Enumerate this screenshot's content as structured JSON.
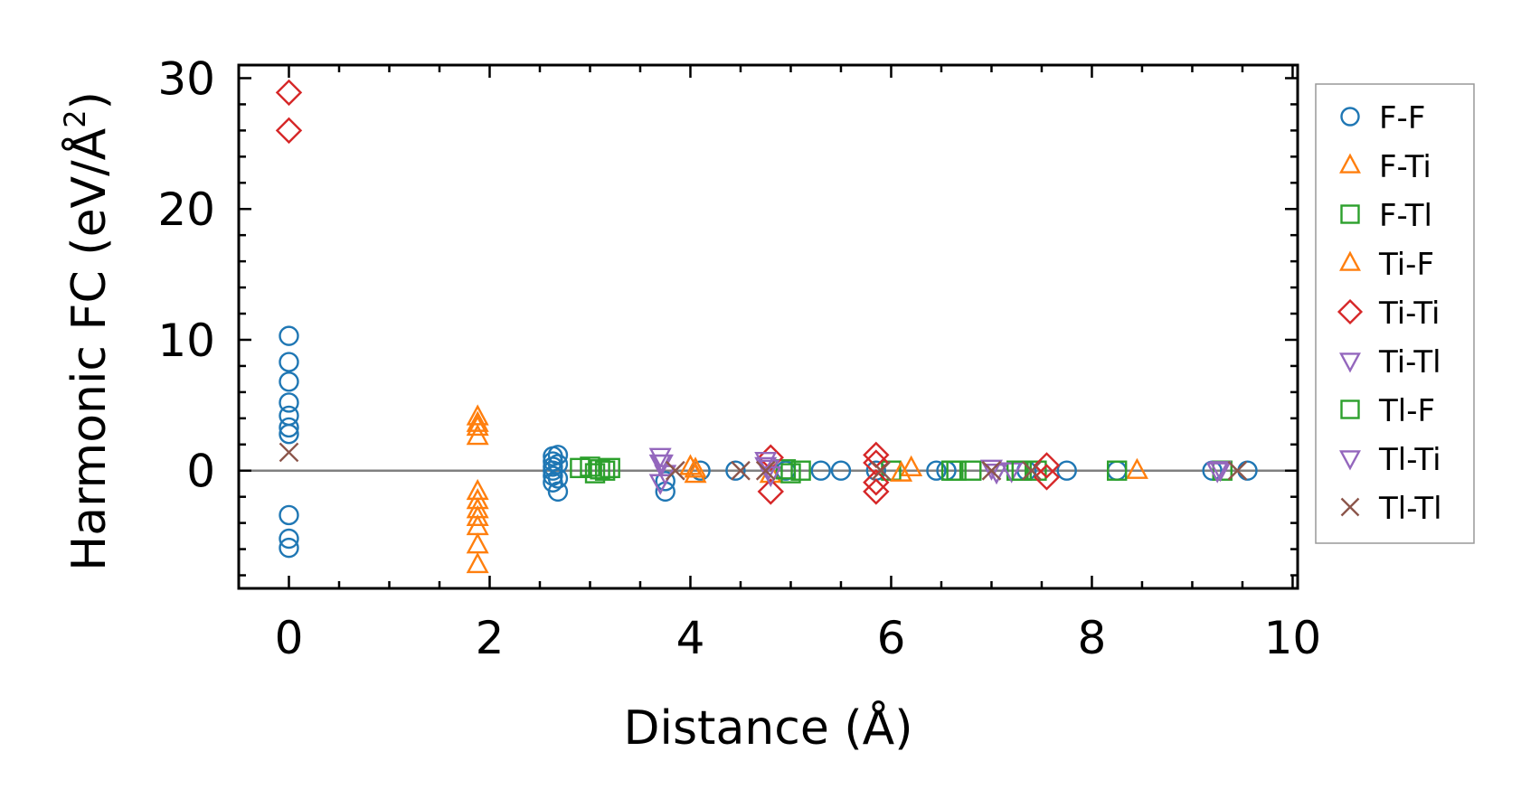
{
  "chart_data": {
    "type": "scatter",
    "title": "",
    "xlabel": "Distance (Å)",
    "ylabel_main": "Harmonic FC (eV/Å",
    "ylabel_sup": "2",
    "ylabel_close": ")",
    "xlim": [
      -0.5,
      10.05
    ],
    "ylim": [
      -9,
      31
    ],
    "xticks": [
      0,
      2,
      4,
      6,
      8,
      10
    ],
    "yticks": [
      0,
      10,
      20,
      30
    ],
    "xtick_labels": [
      "0",
      "2",
      "4",
      "6",
      "8",
      "10"
    ],
    "ytick_labels": [
      "0",
      "10",
      "20",
      "30"
    ],
    "xminor_step": 0.5,
    "yminor_step": 2,
    "grid": false,
    "legend_position": "outside-right",
    "zero_line": true,
    "series": [
      {
        "name": "F-F",
        "marker": "circle",
        "color": "#1f77b4",
        "points": [
          [
            0,
            10.3
          ],
          [
            0,
            8.3
          ],
          [
            0,
            6.8
          ],
          [
            0,
            5.2
          ],
          [
            0,
            4.2
          ],
          [
            0,
            3.3
          ],
          [
            0,
            2.8
          ],
          [
            0,
            -3.4
          ],
          [
            0,
            -5.2
          ],
          [
            0,
            -5.9
          ],
          [
            2.63,
            1.1
          ],
          [
            2.63,
            0.7
          ],
          [
            2.63,
            0.3
          ],
          [
            2.63,
            0
          ],
          [
            2.63,
            -0.4
          ],
          [
            2.63,
            -0.9
          ],
          [
            2.68,
            -1.6
          ],
          [
            2.68,
            1.2
          ],
          [
            2.68,
            0.5
          ],
          [
            2.68,
            -0.6
          ],
          [
            3.75,
            -1.6
          ],
          [
            3.75,
            -0.8
          ],
          [
            4.1,
            0
          ],
          [
            4.45,
            0
          ],
          [
            4.95,
            0
          ],
          [
            5.3,
            0
          ],
          [
            5.5,
            0
          ],
          [
            5.85,
            0
          ],
          [
            6.45,
            0
          ],
          [
            6.55,
            0
          ],
          [
            7.35,
            0
          ],
          [
            7.75,
            0
          ],
          [
            8.25,
            0
          ],
          [
            9.2,
            0
          ],
          [
            9.55,
            0
          ]
        ]
      },
      {
        "name": "F-Ti",
        "marker": "triangle-up",
        "color": "#ff7f0e",
        "points": [
          [
            1.88,
            4.1
          ],
          [
            1.88,
            3.6
          ],
          [
            1.88,
            2.6
          ],
          [
            1.88,
            -1.6
          ],
          [
            1.88,
            -2.3
          ],
          [
            1.88,
            -3.0
          ],
          [
            1.88,
            -3.6
          ],
          [
            1.88,
            -4.3
          ],
          [
            1.88,
            -5.7
          ],
          [
            1.88,
            -7.2
          ],
          [
            4.0,
            0.3
          ],
          [
            4.05,
            -0.3
          ],
          [
            4.8,
            -0.3
          ],
          [
            6.2,
            0.2
          ],
          [
            8.45,
            0
          ]
        ]
      },
      {
        "name": "F-Tl",
        "marker": "square",
        "color": "#2ca02c",
        "points": [
          [
            2.9,
            0.2
          ],
          [
            3.0,
            0.3
          ],
          [
            3.1,
            0.1
          ],
          [
            3.2,
            0.2
          ],
          [
            3.05,
            -0.2
          ],
          [
            4.95,
            0.1
          ],
          [
            5.1,
            0
          ],
          [
            6.0,
            0
          ],
          [
            6.6,
            0
          ],
          [
            6.8,
            0
          ],
          [
            7.25,
            0
          ],
          [
            7.45,
            0
          ],
          [
            8.25,
            0
          ],
          [
            9.3,
            0
          ]
        ]
      },
      {
        "name": "Ti-F",
        "marker": "triangle-up",
        "color": "#ff7f0e",
        "points": [
          [
            1.88,
            3.3
          ],
          [
            4.05,
            0.1
          ],
          [
            6.1,
            -0.2
          ]
        ]
      },
      {
        "name": "Ti-Ti",
        "marker": "diamond",
        "color": "#d62728",
        "points": [
          [
            0,
            28.9
          ],
          [
            0,
            26.0
          ],
          [
            4.8,
            1.0
          ],
          [
            4.8,
            -1.6
          ],
          [
            5.85,
            1.2
          ],
          [
            5.85,
            0.6
          ],
          [
            5.85,
            -0.9
          ],
          [
            5.85,
            -1.6
          ],
          [
            7.55,
            0.4
          ],
          [
            7.55,
            -0.5
          ]
        ]
      },
      {
        "name": "Ti-Tl",
        "marker": "triangle-down",
        "color": "#9467bd",
        "points": [
          [
            3.7,
            1.1
          ],
          [
            3.7,
            0.6
          ],
          [
            3.75,
            -0.2
          ],
          [
            3.7,
            -0.9
          ],
          [
            4.75,
            0.8
          ],
          [
            4.75,
            0.4
          ],
          [
            4.8,
            -0.3
          ],
          [
            7.0,
            0.2
          ],
          [
            7.2,
            0
          ],
          [
            9.25,
            0
          ]
        ]
      },
      {
        "name": "Tl-F",
        "marker": "square",
        "color": "#2ca02c",
        "points": [
          [
            3.15,
            0
          ],
          [
            5.0,
            -0.2
          ],
          [
            6.65,
            0
          ],
          [
            7.3,
            0
          ]
        ]
      },
      {
        "name": "Tl-Ti",
        "marker": "triangle-down",
        "color": "#9467bd",
        "points": [
          [
            3.72,
            0.6
          ],
          [
            4.78,
            0.2
          ],
          [
            7.05,
            -0.1
          ],
          [
            9.28,
            0.1
          ]
        ]
      },
      {
        "name": "Tl-Tl",
        "marker": "x",
        "color": "#8c564b",
        "points": [
          [
            0,
            1.4
          ],
          [
            3.85,
            0
          ],
          [
            4.5,
            0
          ],
          [
            4.75,
            0
          ],
          [
            5.9,
            0
          ],
          [
            7.0,
            0
          ],
          [
            7.4,
            0
          ],
          [
            9.45,
            0
          ]
        ]
      }
    ]
  }
}
